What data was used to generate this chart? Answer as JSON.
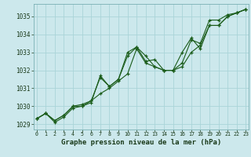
{
  "title": "Graphe pression niveau de la mer (hPa)",
  "bg_color": "#cce8ec",
  "grid_color": "#aad4d8",
  "line_color": "#1a5c1a",
  "marker_color": "#1a5c1a",
  "x_ticks": [
    0,
    1,
    2,
    3,
    4,
    5,
    6,
    7,
    8,
    9,
    10,
    11,
    12,
    13,
    14,
    15,
    16,
    17,
    18,
    19,
    20,
    21,
    22,
    23
  ],
  "xlim": [
    -0.3,
    23.3
  ],
  "ylim": [
    1028.7,
    1035.7
  ],
  "y_ticks": [
    1029,
    1030,
    1031,
    1032,
    1033,
    1034,
    1035
  ],
  "series": [
    [
      1029.3,
      1029.6,
      1029.2,
      1029.5,
      1030.0,
      1030.0,
      1030.3,
      1030.7,
      1031.0,
      1031.4,
      1031.8,
      1033.2,
      1032.4,
      1032.2,
      1032.0,
      1032.0,
      1032.4,
      1033.7,
      1033.5,
      1034.8,
      1034.8,
      1035.1,
      1035.2,
      1035.4
    ],
    [
      1029.3,
      1029.6,
      1029.1,
      1029.4,
      1029.9,
      1030.0,
      1030.2,
      1031.7,
      1031.1,
      1031.5,
      1033.0,
      1033.3,
      1032.8,
      1032.2,
      1032.0,
      1032.0,
      1032.2,
      1033.0,
      1033.4,
      1034.5,
      1034.5,
      1035.0,
      1035.2,
      1035.4
    ],
    [
      1029.3,
      1029.6,
      1029.2,
      1029.5,
      1030.0,
      1030.1,
      1030.3,
      1031.6,
      1031.1,
      1031.5,
      1032.8,
      1033.3,
      1032.5,
      1032.6,
      1032.0,
      1032.0,
      1033.0,
      1033.8,
      1033.2,
      1034.5,
      1034.5,
      1035.0,
      1035.2,
      1035.4
    ]
  ]
}
